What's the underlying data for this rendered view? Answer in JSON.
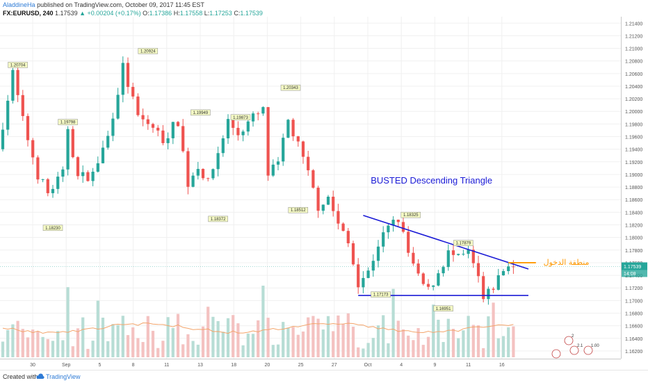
{
  "header": {
    "user": "AladdineHa",
    "published": "published on TradingView.com, October 09, 2017 11:45 EST",
    "symbol": "FX:EURUSD, 240",
    "price": "1.17539",
    "change": "+0.00204 (+0.17%)",
    "o_label": "O:",
    "o_value": "1.17386",
    "h_label": "H:",
    "h_value": "1.17558",
    "l_label": "L:",
    "l_value": "1.17253",
    "c_label": "C:",
    "c_value": "1.17539"
  },
  "footer": {
    "created_with": "Created with",
    "brand": "TradingView"
  },
  "colors": {
    "up": "#26a69a",
    "down": "#ef5350",
    "volume_up": "#b7ddd5",
    "volume_down": "#f4c2c1",
    "trendline": "#1a1ad6",
    "entry": "#ff9800",
    "ma_volume": "#f3a46a",
    "label_bg": "#f4f9c4"
  },
  "chart_data": {
    "type": "candlestick",
    "y_axis_ticks": [
      "1.21400",
      "1.21200",
      "1.21000",
      "1.20800",
      "1.20600",
      "1.20400",
      "1.20200",
      "1.20000",
      "1.19800",
      "1.19600",
      "1.19400",
      "1.19200",
      "1.19000",
      "1.18800",
      "1.18600",
      "1.18400",
      "1.18200",
      "1.18000",
      "1.17800",
      "1.17600",
      "1.17400",
      "1.17200",
      "1.17000",
      "1.16800",
      "1.16600",
      "1.16400",
      "1.16200"
    ],
    "ylim": [
      1.161,
      1.2148
    ],
    "x_axis_ticks": [
      "30",
      "Sep",
      "5",
      "8",
      "11",
      "13",
      "18",
      "20",
      "25",
      "27",
      "Oct",
      "4",
      "9",
      "11",
      "16"
    ],
    "current_price": "1.17539",
    "countdown": "14:08",
    "price_labels": [
      "1.20704",
      "1.19798",
      "1.18230",
      "1.20924",
      "1.19949",
      "1.18372",
      "1.19873",
      "1.20343",
      "1.18512",
      "1.18325",
      "1.17879",
      "1.17173",
      "1.16951"
    ],
    "annotations": {
      "pattern_title": "BUSTED Descending Triangle",
      "entry_label": "منطقة الدخول"
    },
    "event_badges": [
      "2",
      "2.1",
      "1.00"
    ],
    "anchors": [
      {
        "t": 0,
        "p": 1.194
      },
      {
        "t": 3,
        "p": 1.206
      },
      {
        "t": 5,
        "p": 1.1985
      },
      {
        "t": 8,
        "p": 1.19
      },
      {
        "t": 10,
        "p": 1.187
      },
      {
        "t": 13,
        "p": 1.19
      },
      {
        "t": 14,
        "p": 1.1975
      },
      {
        "t": 16,
        "p": 1.1895
      },
      {
        "t": 19,
        "p": 1.19
      },
      {
        "t": 22,
        "p": 1.196
      },
      {
        "t": 25,
        "p": 1.207
      },
      {
        "t": 28,
        "p": 1.199
      },
      {
        "t": 31,
        "p": 1.1975
      },
      {
        "t": 33,
        "p": 1.1955
      },
      {
        "t": 36,
        "p": 1.1985
      },
      {
        "t": 38,
        "p": 1.1885
      },
      {
        "t": 40,
        "p": 1.1915
      },
      {
        "t": 42,
        "p": 1.1885
      },
      {
        "t": 44,
        "p": 1.1935
      },
      {
        "t": 46,
        "p": 1.1985
      },
      {
        "t": 48,
        "p": 1.1965
      },
      {
        "t": 51,
        "p": 1.199
      },
      {
        "t": 53,
        "p": 1.2
      },
      {
        "t": 54,
        "p": 1.19
      },
      {
        "t": 56,
        "p": 1.1915
      },
      {
        "t": 58,
        "p": 1.1985
      },
      {
        "t": 60,
        "p": 1.1945
      },
      {
        "t": 62,
        "p": 1.19
      },
      {
        "t": 64,
        "p": 1.185
      },
      {
        "t": 66,
        "p": 1.1865
      },
      {
        "t": 68,
        "p": 1.182
      },
      {
        "t": 70,
        "p": 1.179
      },
      {
        "t": 72,
        "p": 1.173
      },
      {
        "t": 74,
        "p": 1.1745
      },
      {
        "t": 76,
        "p": 1.179
      },
      {
        "t": 78,
        "p": 1.1815
      },
      {
        "t": 80,
        "p": 1.183
      },
      {
        "t": 82,
        "p": 1.1775
      },
      {
        "t": 84,
        "p": 1.1735
      },
      {
        "t": 86,
        "p": 1.1715
      },
      {
        "t": 88,
        "p": 1.1745
      },
      {
        "t": 90,
        "p": 1.1775
      },
      {
        "t": 92,
        "p": 1.1765
      },
      {
        "t": 94,
        "p": 1.1775
      },
      {
        "t": 96,
        "p": 1.1735
      },
      {
        "t": 97,
        "p": 1.17
      },
      {
        "t": 98,
        "p": 1.171
      },
      {
        "t": 100,
        "p": 1.1735
      },
      {
        "t": 101,
        "p": 1.175
      },
      {
        "t": 102,
        "p": 1.1754
      }
    ]
  }
}
